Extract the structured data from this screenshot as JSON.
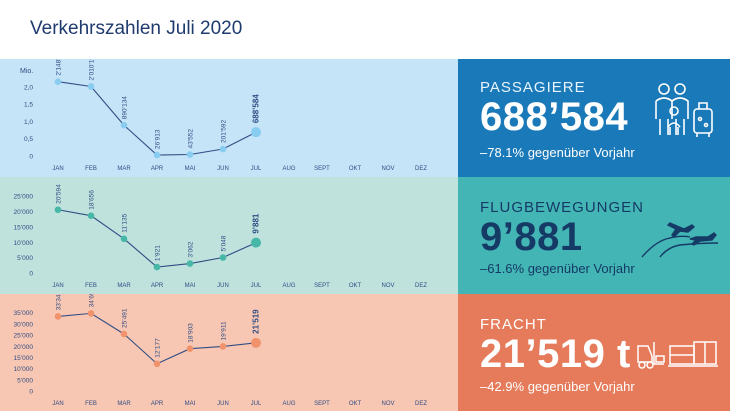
{
  "title": "Verkehrszahlen Juli 2020",
  "months": [
    "JAN",
    "FEB",
    "MAR",
    "APR",
    "MAI",
    "JUN",
    "JUL",
    "AUG",
    "SEPT",
    "OKT",
    "NOV",
    "DEZ"
  ],
  "colors": {
    "passagiere_bg": "#c6e4f7",
    "passagiere_line": "#88ccf0",
    "passagiere_panel": "#1a79b8",
    "flug_bg": "#bfe2dd",
    "flug_line": "#47b8a8",
    "flug_panel": "#44b5b5",
    "fracht_bg": "#f8c7b3",
    "fracht_line": "#f0936d",
    "fracht_panel": "#e57b5a",
    "line_dark": "#2f4d84"
  },
  "passagiere": {
    "label": "PASSAGIERE",
    "value": "688’584",
    "change": "–78.1% gegenüber Vorjahr",
    "icon": "family-luggage-icon"
  },
  "flugbewegungen": {
    "label": "FLUGBEWEGUNGEN",
    "value": "9’881",
    "change": "–61.6% gegenüber Vorjahr",
    "icon": "airplanes-icon"
  },
  "fracht": {
    "label": "FRACHT",
    "value": "21’519 t",
    "change": "–42.9% gegenüber Vorjahr",
    "icon": "forklift-icon"
  },
  "chart_data": [
    {
      "type": "line",
      "ylabel": "Mio.",
      "ylim": [
        0,
        2.4
      ],
      "yticks": [
        "0",
        "0,5",
        "1,0",
        "1,5",
        "2,0"
      ],
      "ytick_values": [
        0,
        0.5,
        1.0,
        1.5,
        2.0
      ],
      "categories": [
        "JAN",
        "FEB",
        "MAR",
        "APR",
        "MAI",
        "JUN",
        "JUL",
        "AUG",
        "SEPT",
        "OKT",
        "NOV",
        "DEZ"
      ],
      "values": [
        2.148812,
        2.010199,
        0.890134,
        0.026913,
        0.043552,
        0.201592,
        0.688584
      ],
      "labels": [
        "2’148’812",
        "2’010’199",
        "890’134",
        "26’913",
        "43’552",
        "201’592",
        "688’584"
      ]
    },
    {
      "type": "line",
      "ylim": [
        0,
        28000
      ],
      "yticks": [
        "0",
        "5’000",
        "10’000",
        "15’000",
        "20’000",
        "25’000"
      ],
      "ytick_values": [
        0,
        5000,
        10000,
        15000,
        20000,
        25000
      ],
      "categories": [
        "JAN",
        "FEB",
        "MAR",
        "APR",
        "MAI",
        "JUN",
        "JUL",
        "AUG",
        "SEPT",
        "OKT",
        "NOV",
        "DEZ"
      ],
      "values": [
        20594,
        18656,
        11135,
        1921,
        3062,
        5048,
        9881
      ],
      "labels": [
        "20’594",
        "18’656",
        "11’135",
        "1’921",
        "3’062",
        "5’048",
        "9’881"
      ]
    },
    {
      "type": "line",
      "ylim": [
        0,
        38000
      ],
      "yticks": [
        "0",
        "5’000",
        "10’000",
        "15’000",
        "20’000",
        "25’000",
        "30’000",
        "35’000"
      ],
      "ytick_values": [
        0,
        5000,
        10000,
        15000,
        20000,
        25000,
        30000,
        35000
      ],
      "categories": [
        "JAN",
        "FEB",
        "MAR",
        "APR",
        "MAI",
        "JUN",
        "JUL",
        "AUG",
        "SEPT",
        "OKT",
        "NOV",
        "DEZ"
      ],
      "values": [
        33346,
        34697,
        25491,
        12177,
        18903,
        19911,
        21519
      ],
      "labels": [
        "33’346",
        "34’697",
        "25’491",
        "12’177",
        "18’903",
        "19’911",
        "21’519"
      ]
    }
  ]
}
